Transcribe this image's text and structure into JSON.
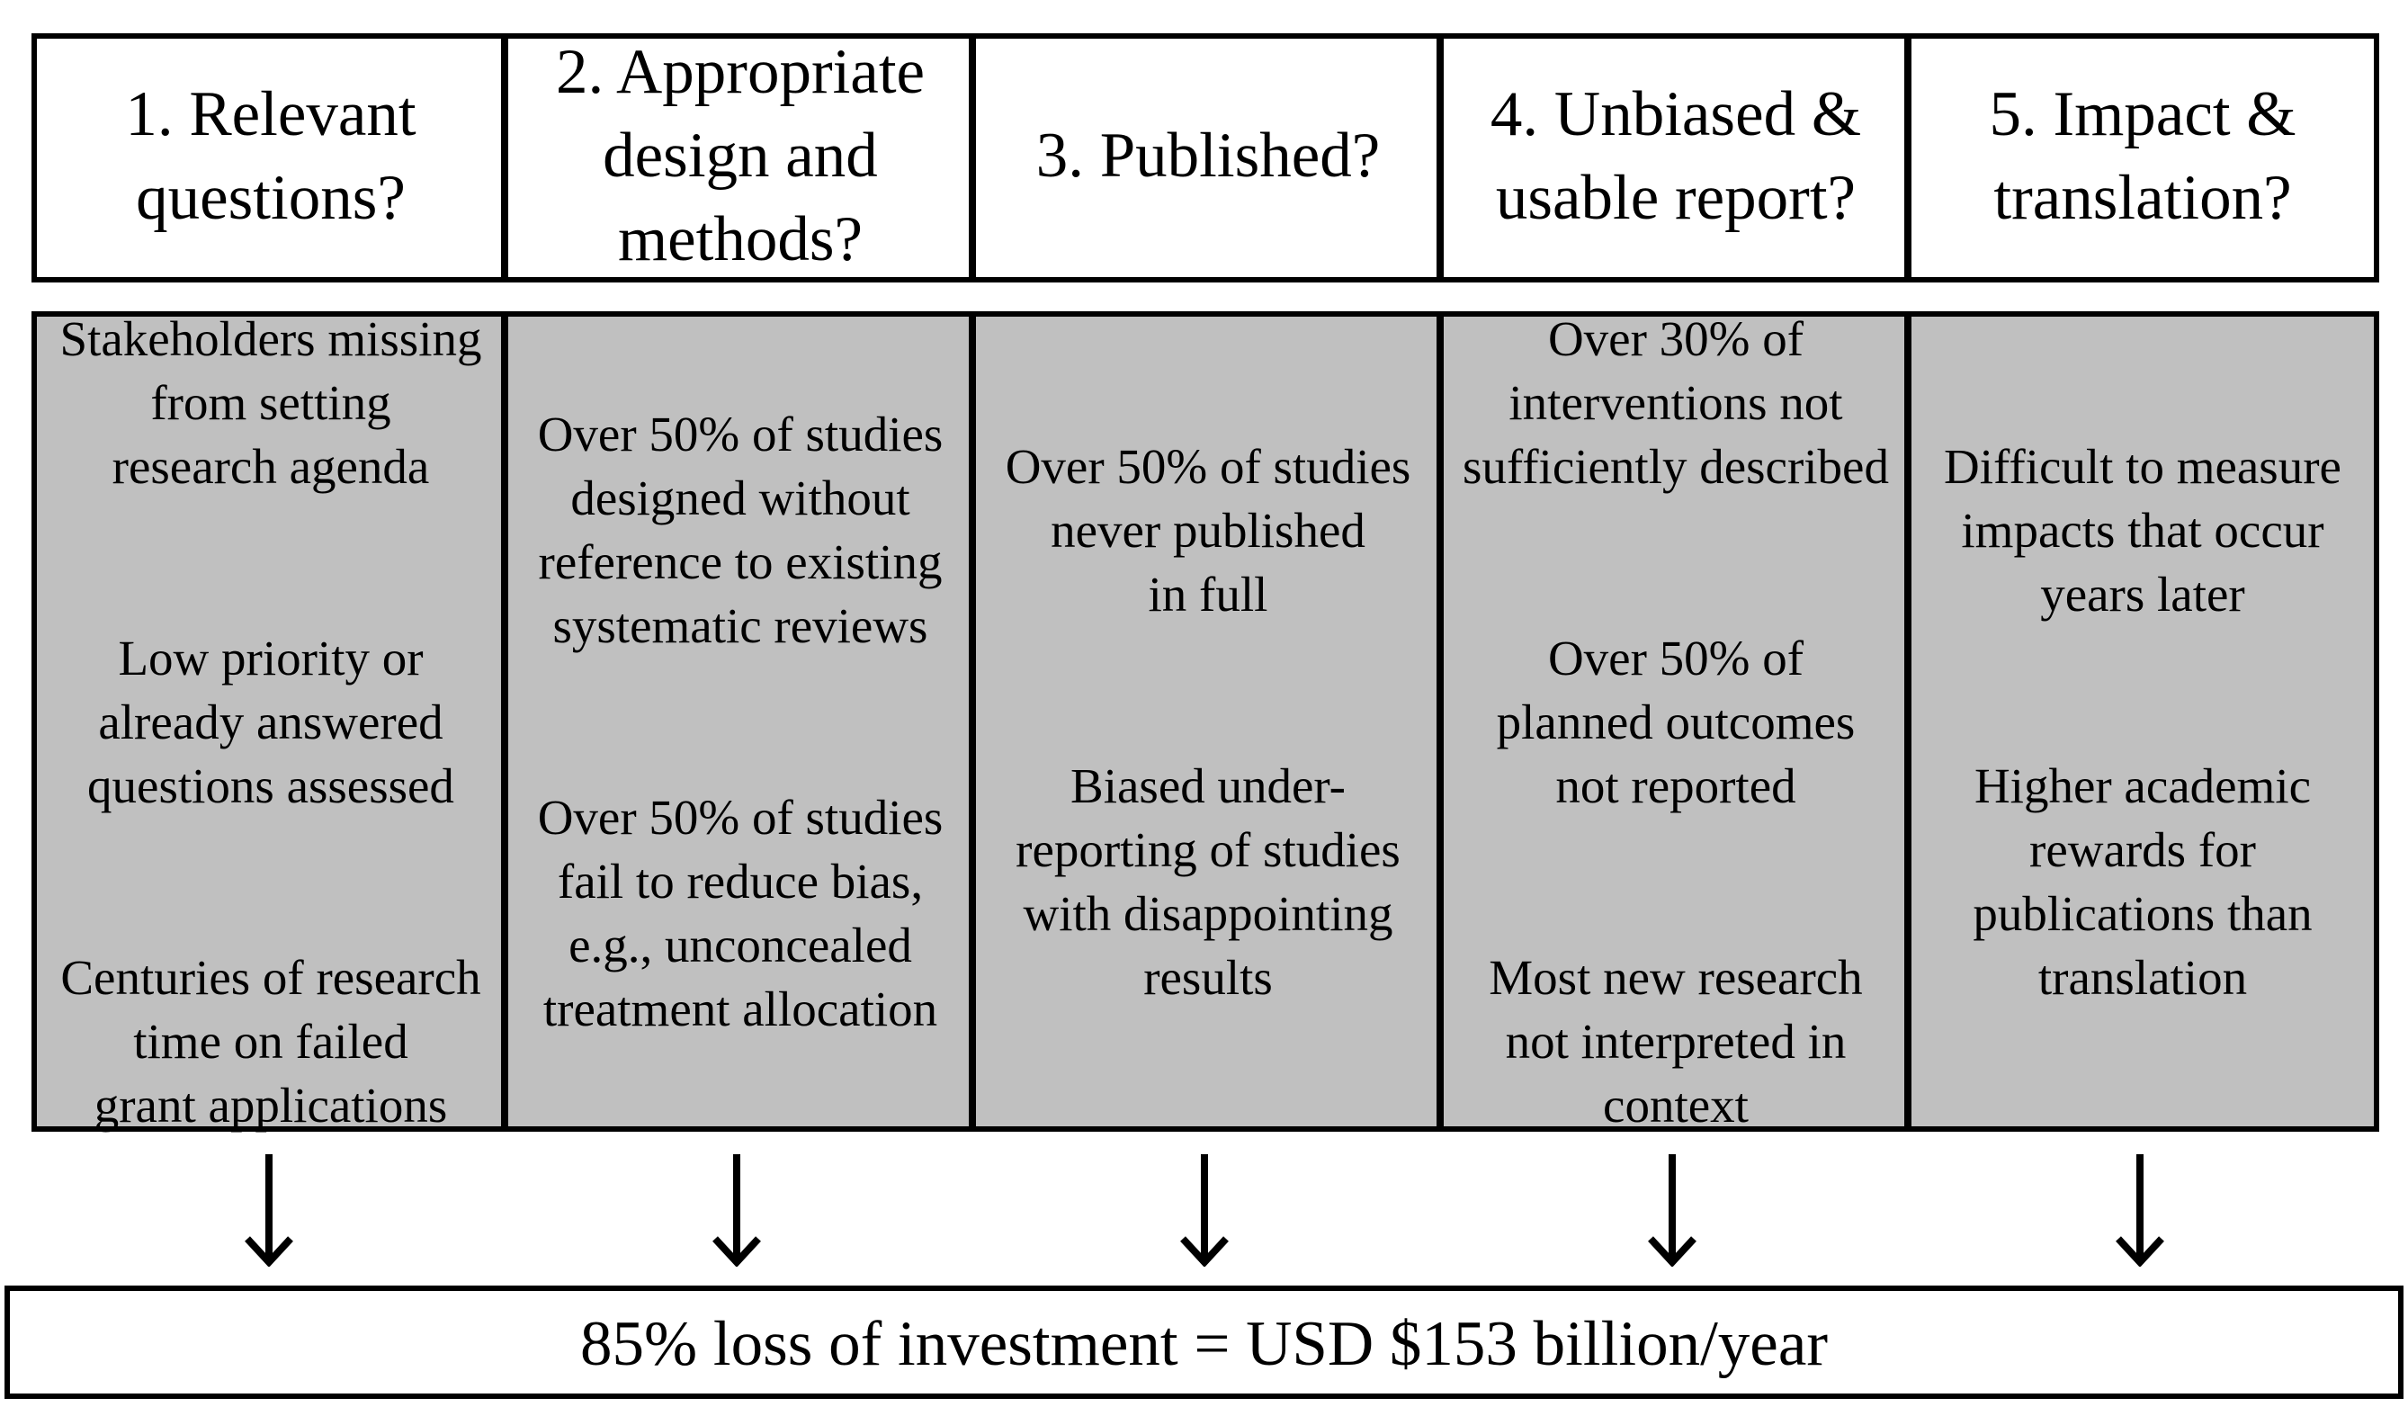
{
  "stages": [
    {
      "header": "1. Relevant\nquestions?",
      "findings": [
        "Stakeholders missing\nfrom setting\nresearch agenda",
        "Low priority or\nalready answered\nquestions assessed",
        "Centuries of research\ntime on failed\ngrant applications"
      ]
    },
    {
      "header": "2. Appropriate\ndesign and\nmethods?",
      "findings": [
        "Over 50% of studies\ndesigned without\nreference to existing\nsystematic reviews",
        "Over 50% of studies\nfail to reduce bias,\ne.g., unconcealed\ntreatment allocation"
      ]
    },
    {
      "header": "3. Published?",
      "findings": [
        "Over 50% of studies\nnever published\nin full",
        "Biased under-\nreporting of studies\nwith disappointing\nresults"
      ]
    },
    {
      "header": "4. Unbiased &\nusable report?",
      "findings": [
        "Over 30% of\ninterventions not\nsufficiently described",
        "Over 50% of\nplanned outcomes\nnot reported",
        "Most new research\nnot interpreted in\ncontext"
      ]
    },
    {
      "header": "5. Impact &\ntranslation?",
      "findings": [
        "Difficult to measure\nimpacts that occur\nyears later",
        "Higher academic\nrewards for\npublications than\ntranslation"
      ]
    }
  ],
  "footer": "85% loss of investment = USD $153 billion/year",
  "colors": {
    "findings_fill": "#c0c0c0",
    "header_fill": "#ffffff",
    "border": "#000000"
  }
}
